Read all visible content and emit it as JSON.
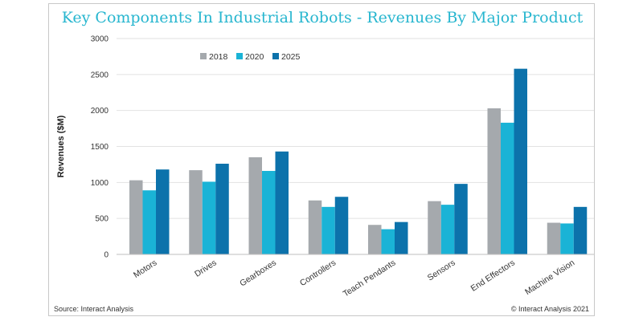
{
  "chart_data": {
    "type": "bar",
    "title": "Key Components In Industrial Robots - Revenues By Major Product",
    "xlabel": "",
    "ylabel": "Revenues ($M)",
    "ylim": [
      0,
      3000
    ],
    "yticks": [
      0,
      500,
      1000,
      1500,
      2000,
      2500,
      3000
    ],
    "grid": true,
    "legend_position": "top-left",
    "categories": [
      "Motors",
      "Drives",
      "Gearboxes",
      "Controllers",
      "Teach Pendants",
      "Sensors",
      "End Effectors",
      "Machine Vision"
    ],
    "series": [
      {
        "name": "2018",
        "color": "#a5a9ad",
        "values": [
          1030,
          1170,
          1350,
          750,
          410,
          740,
          2030,
          440
        ]
      },
      {
        "name": "2020",
        "color": "#1ab3d6",
        "values": [
          890,
          1010,
          1160,
          660,
          350,
          690,
          1830,
          430
        ]
      },
      {
        "name": "2025",
        "color": "#0c72ab",
        "values": [
          1180,
          1260,
          1430,
          800,
          450,
          980,
          2580,
          660
        ]
      }
    ],
    "source": "Source: Interact Analysis",
    "copyright": "© Interact Analysis 2021"
  }
}
